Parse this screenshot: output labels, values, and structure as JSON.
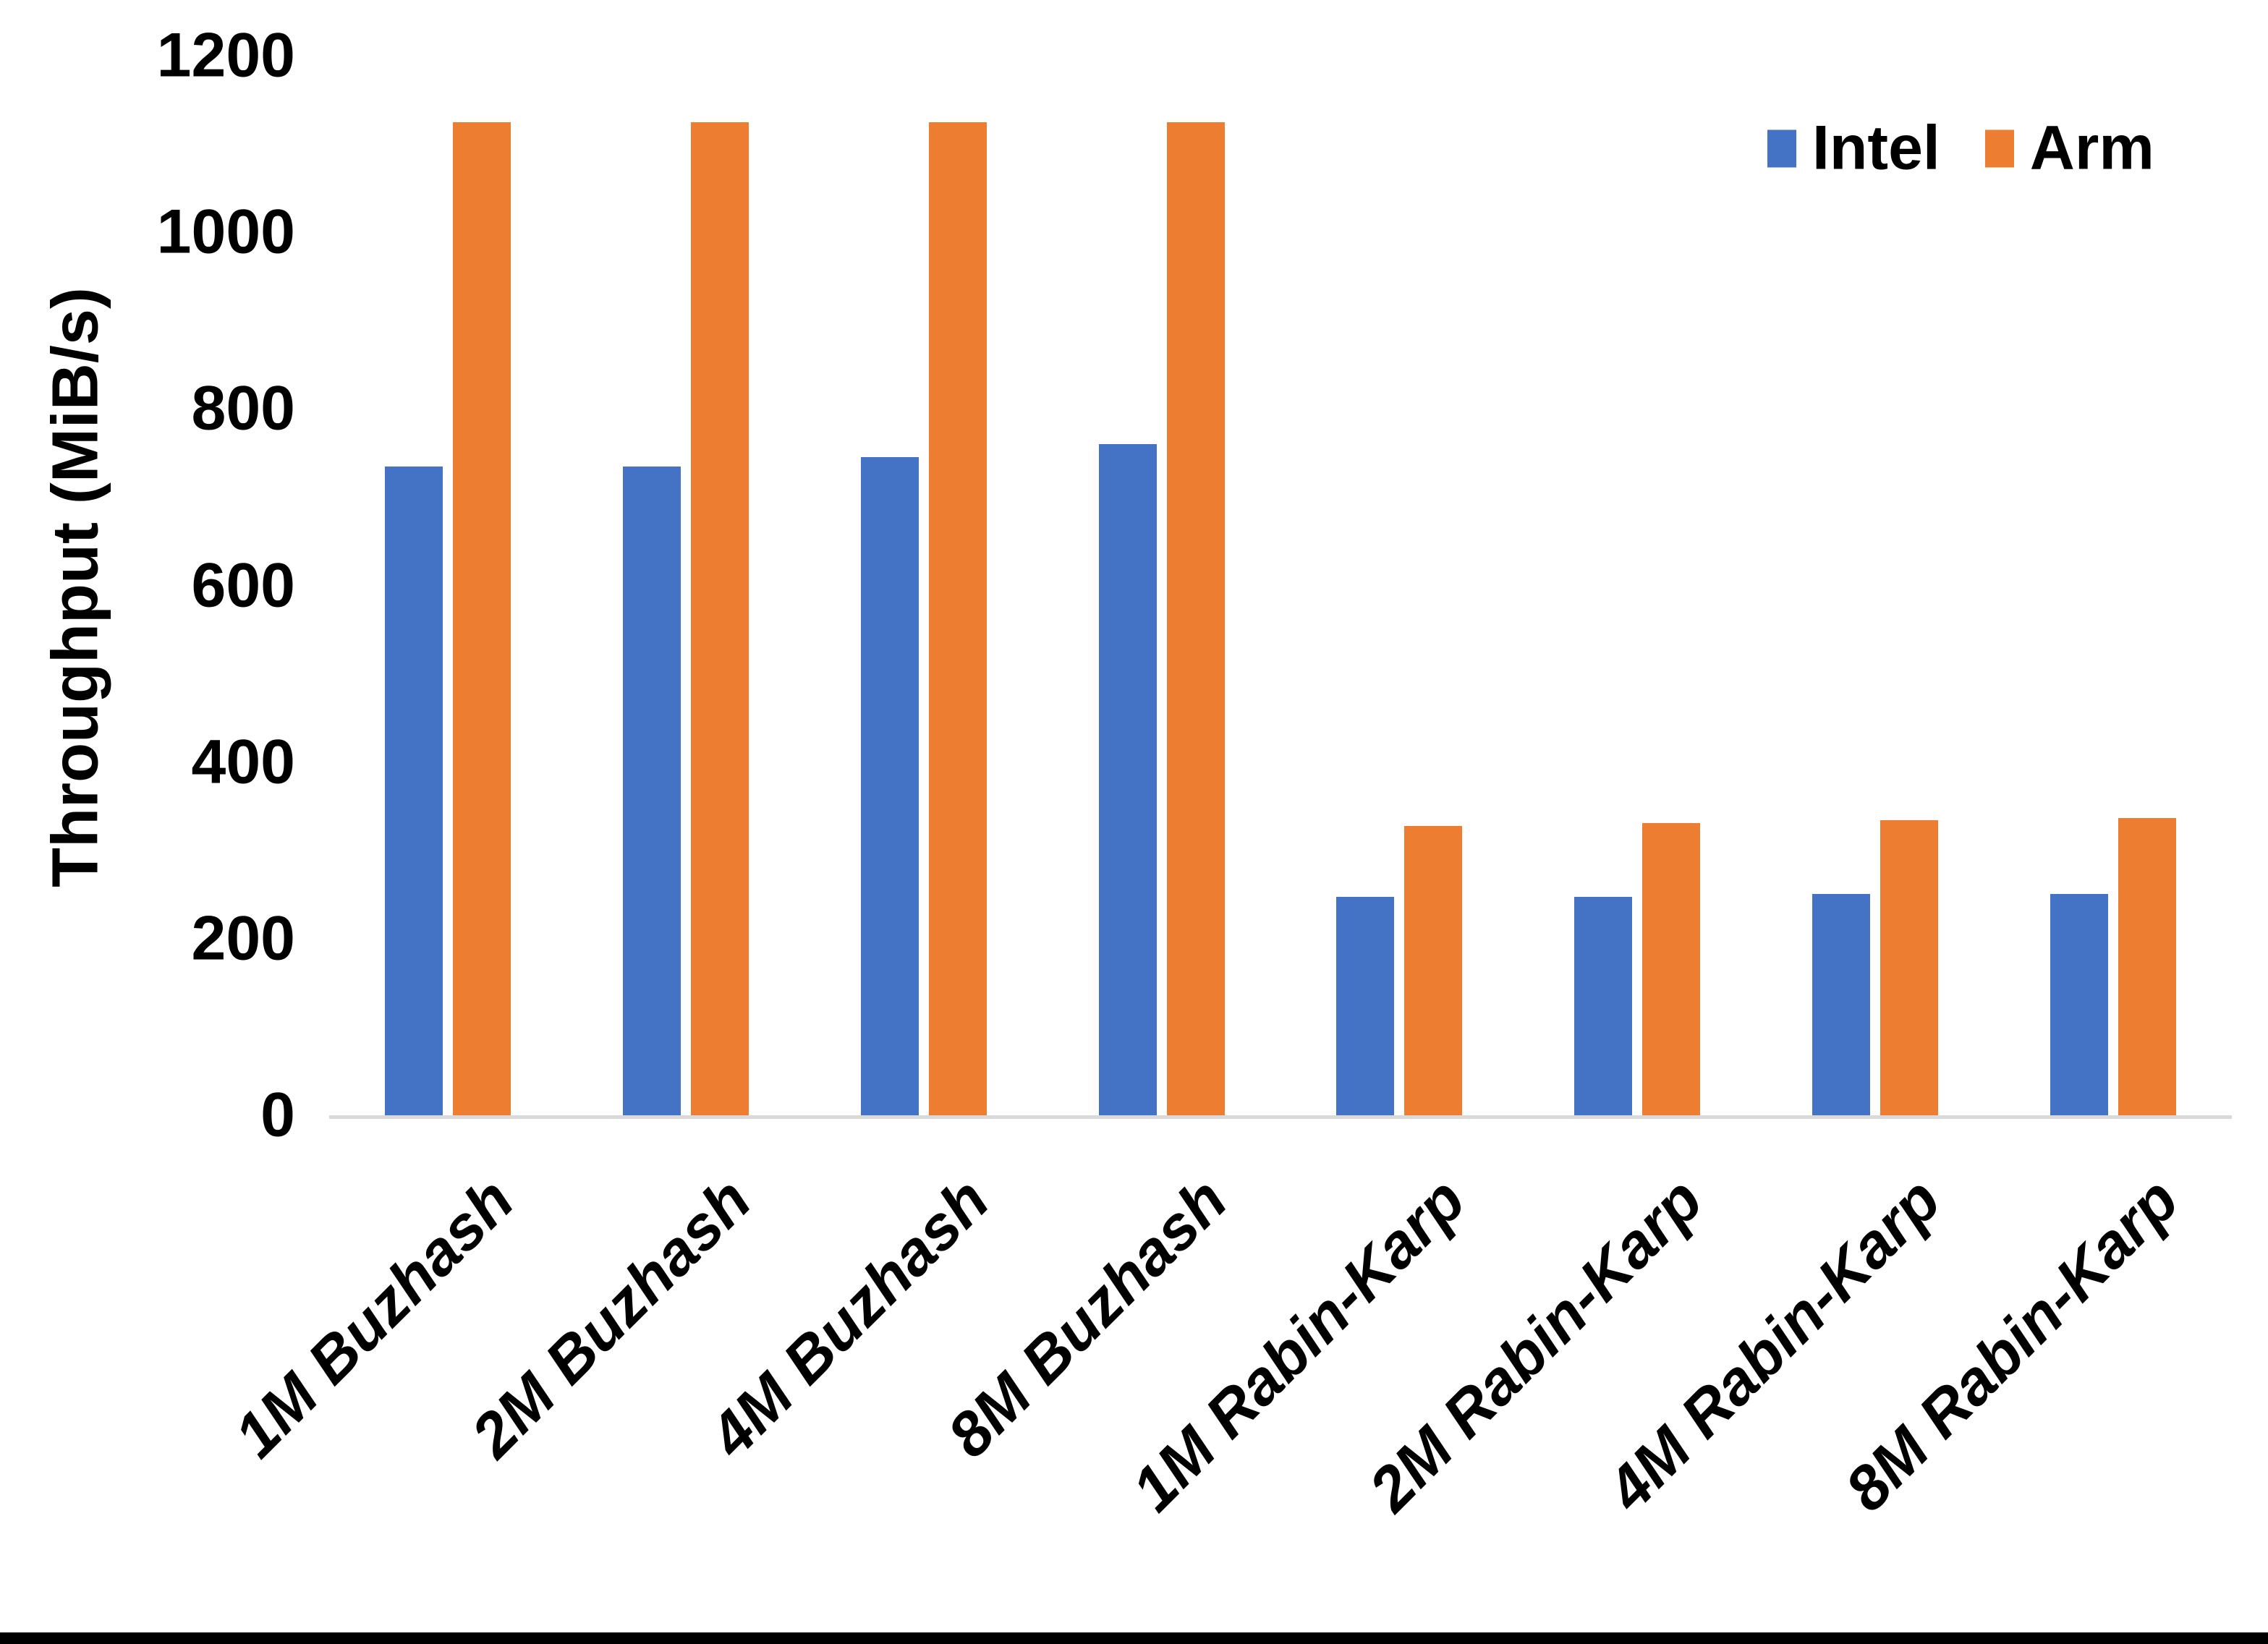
{
  "chart_data": {
    "type": "bar",
    "title": "",
    "xlabel": "",
    "ylabel": "Throughput (MiB/s)",
    "ylim": [
      0,
      1200
    ],
    "yticks": [
      0,
      200,
      400,
      600,
      800,
      1000,
      1200
    ],
    "grid": false,
    "legend_position": "top-right",
    "categories": [
      "1M Buzhash",
      "2M Buzhash",
      "4M Buzhash",
      "8M Buzhash",
      "1M Rabin-Karp",
      "2M Rabin-Karp",
      "4M Rabin-Karp",
      "8M Rabin-Karp"
    ],
    "series": [
      {
        "name": "Intel",
        "color": "#4472C4",
        "values": [
          735,
          735,
          745,
          760,
          247,
          247,
          251,
          251
        ]
      },
      {
        "name": "Arm",
        "color": "#ED7D31",
        "values": [
          1125,
          1125,
          1125,
          1125,
          328,
          331,
          334,
          337
        ]
      }
    ]
  },
  "colors": {
    "background": "#FFFFFF",
    "axis_line": "#D9D9D9",
    "text": "#000000",
    "bottom_border": "#000000"
  }
}
